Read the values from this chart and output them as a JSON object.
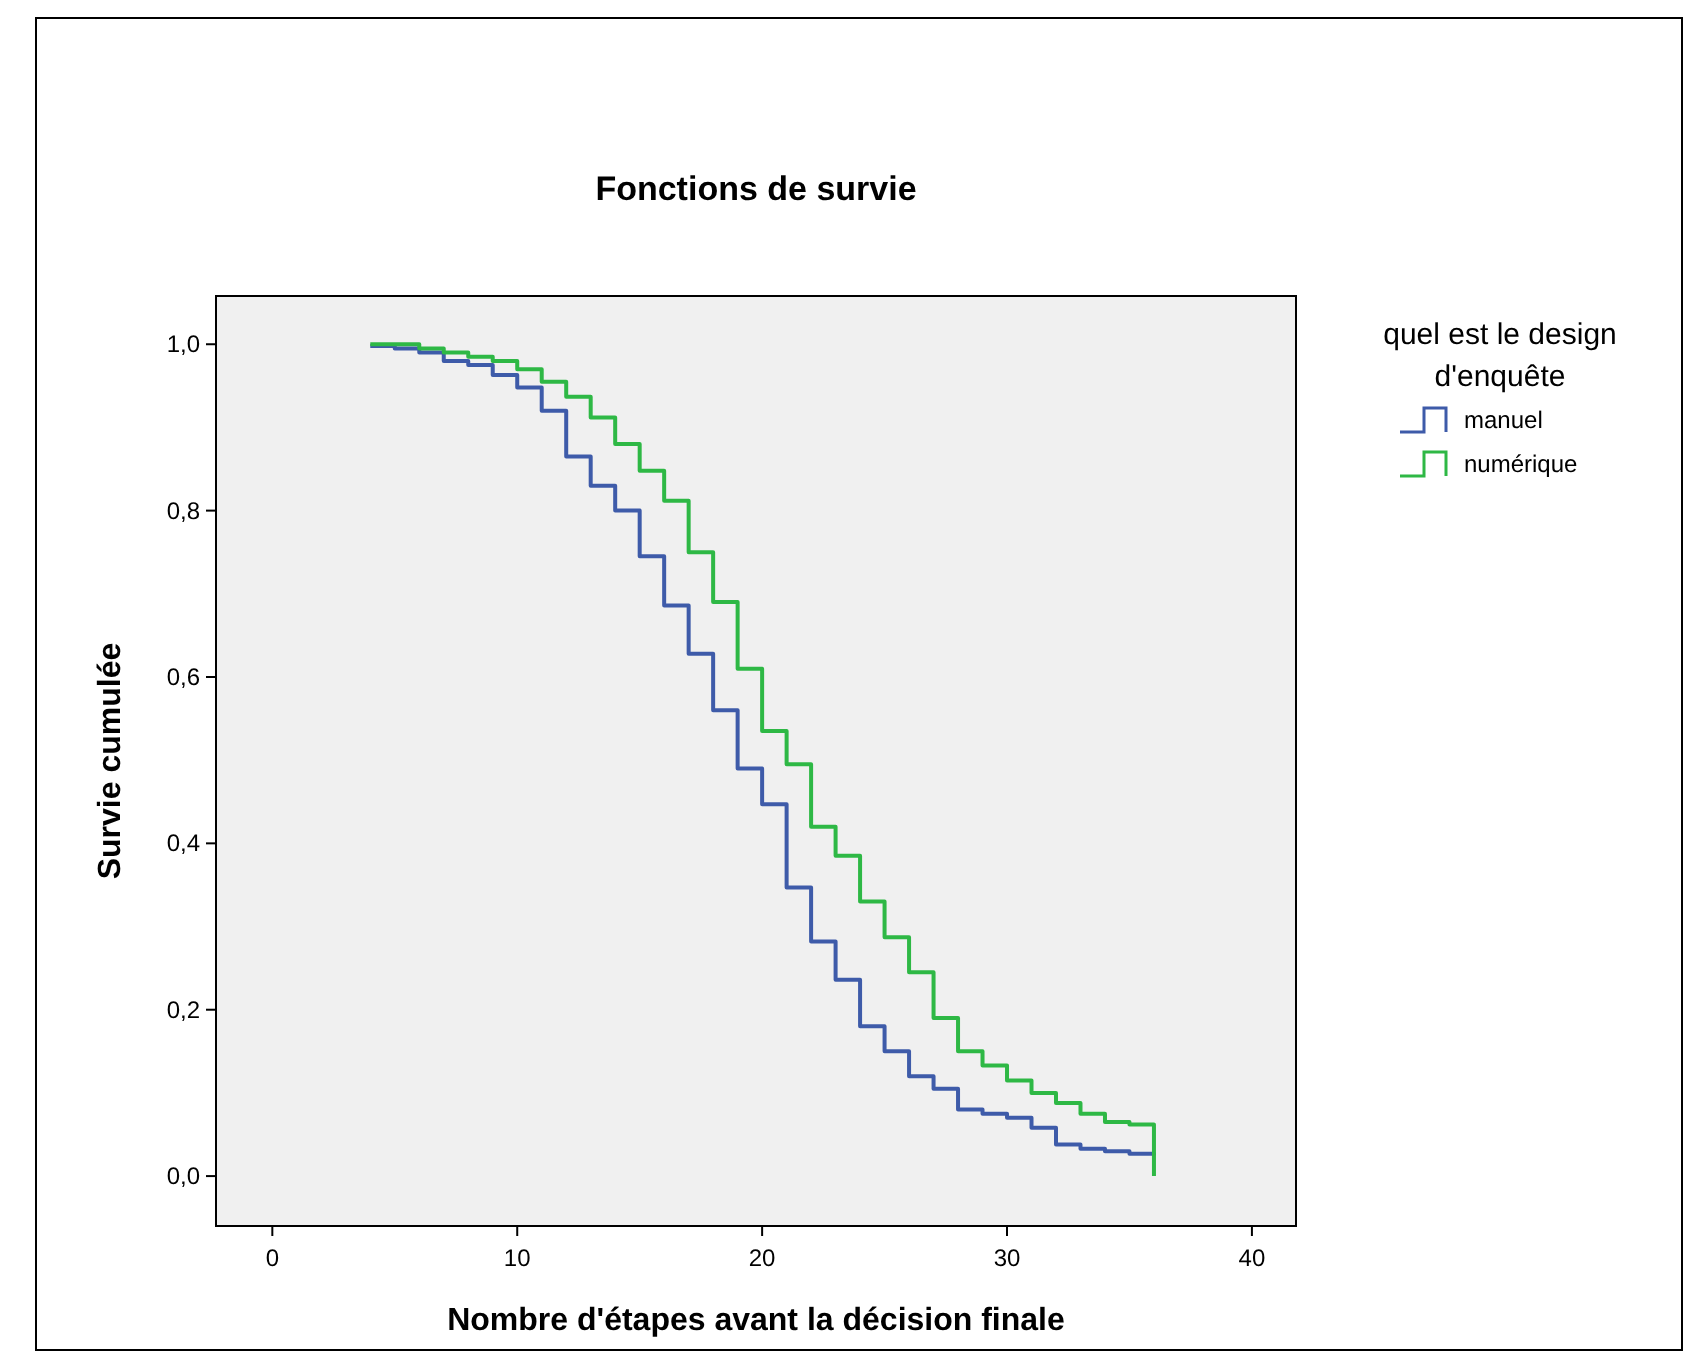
{
  "chart_data": {
    "type": "step",
    "title": "Fonctions de survie",
    "xlabel": "Nombre d'étapes avant la décision finale",
    "ylabel": "Survie cumulée",
    "legend_title": "quel est le design d'enquête",
    "legend": "right",
    "grid": false,
    "marker": "none",
    "xlim": [
      -2.3,
      41.8
    ],
    "ylim": [
      -0.06,
      1.058
    ],
    "xticks": [
      0,
      10,
      20,
      30,
      40
    ],
    "yticks": [
      {
        "value": 0,
        "label": "0,0"
      },
      {
        "value": 0.2,
        "label": "0,2"
      },
      {
        "value": 0.4,
        "label": "0,4"
      },
      {
        "value": 0.6,
        "label": "0,6"
      },
      {
        "value": 0.8,
        "label": "0,8"
      },
      {
        "value": 1,
        "label": "1,0"
      }
    ],
    "series": [
      {
        "name": "manuel",
        "color": "#3e5ba9",
        "x": [
          4,
          5,
          6,
          7,
          8,
          9,
          10,
          11,
          12,
          13,
          14,
          15,
          16,
          17,
          18,
          19,
          20,
          21,
          22,
          23,
          24,
          25,
          26,
          27,
          28,
          29,
          30,
          31,
          32,
          33,
          34,
          35,
          36
        ],
        "values": [
          0.998,
          0.995,
          0.99,
          0.98,
          0.975,
          0.963,
          0.948,
          0.92,
          0.865,
          0.83,
          0.8,
          0.745,
          0.686,
          0.628,
          0.56,
          0.49,
          0.447,
          0.347,
          0.282,
          0.236,
          0.18,
          0.15,
          0.12,
          0.105,
          0.08,
          0.075,
          0.07,
          0.058,
          0.038,
          0.033,
          0.03,
          0.027,
          0.025
        ]
      },
      {
        "name": "numérique",
        "color": "#2eb845",
        "x": [
          4,
          6,
          7,
          8,
          9,
          10,
          11,
          12,
          13,
          14,
          15,
          16,
          17,
          18,
          19,
          20,
          21,
          22,
          23,
          24,
          25,
          26,
          27,
          28,
          29,
          30,
          31,
          32,
          33,
          34,
          35,
          36,
          36
        ],
        "values": [
          1.0,
          0.995,
          0.99,
          0.985,
          0.98,
          0.97,
          0.955,
          0.937,
          0.912,
          0.88,
          0.848,
          0.812,
          0.75,
          0.69,
          0.61,
          0.535,
          0.495,
          0.42,
          0.385,
          0.33,
          0.287,
          0.245,
          0.19,
          0.15,
          0.133,
          0.115,
          0.1,
          0.088,
          0.075,
          0.065,
          0.062,
          0.057,
          0.0
        ]
      }
    ]
  }
}
